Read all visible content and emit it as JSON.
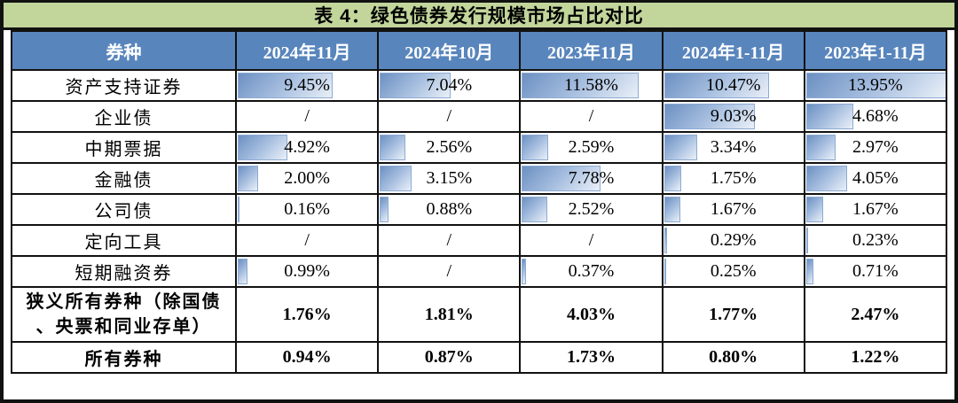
{
  "title": "表 4：绿色债券发行规模市场占比对比",
  "chart_data": {
    "type": "table",
    "title": "表 4：绿色债券发行规模市场占比对比",
    "columns": [
      "券种",
      "2024年11月",
      "2024年10月",
      "2023年11月",
      "2024年1-11月",
      "2023年1-11月"
    ],
    "rows": [
      {
        "label": "资产支持证券",
        "values": [
          "9.45%",
          "7.04%",
          "11.58%",
          "10.47%",
          "13.95%"
        ],
        "bar_values": [
          9.45,
          7.04,
          11.58,
          10.47,
          13.95
        ],
        "bold": false
      },
      {
        "label": "企业债",
        "values": [
          "/",
          "/",
          "/",
          "9.03%",
          "4.68%"
        ],
        "bar_values": [
          null,
          null,
          null,
          9.03,
          4.68
        ],
        "bold": false
      },
      {
        "label": "中期票据",
        "values": [
          "4.92%",
          "2.56%",
          "2.59%",
          "3.34%",
          "2.97%"
        ],
        "bar_values": [
          4.92,
          2.56,
          2.59,
          3.34,
          2.97
        ],
        "bold": false
      },
      {
        "label": "金融债",
        "values": [
          "2.00%",
          "3.15%",
          "7.78%",
          "1.75%",
          "4.05%"
        ],
        "bar_values": [
          2.0,
          3.15,
          7.78,
          1.75,
          4.05
        ],
        "bold": false
      },
      {
        "label": "公司债",
        "values": [
          "0.16%",
          "0.88%",
          "2.52%",
          "1.67%",
          "1.67%"
        ],
        "bar_values": [
          0.16,
          0.88,
          2.52,
          1.67,
          1.67
        ],
        "bold": false
      },
      {
        "label": "定向工具",
        "values": [
          "/",
          "/",
          "/",
          "0.29%",
          "0.23%"
        ],
        "bar_values": [
          null,
          null,
          null,
          0.29,
          0.23
        ],
        "bold": false
      },
      {
        "label": "短期融资券",
        "values": [
          "0.99%",
          "/",
          "0.37%",
          "0.25%",
          "0.71%"
        ],
        "bar_values": [
          0.99,
          null,
          0.37,
          0.25,
          0.71
        ],
        "bold": false
      },
      {
        "label": "狭义所有券种（除国债、央票和同业存单）",
        "values": [
          "1.76%",
          "1.81%",
          "4.03%",
          "1.77%",
          "2.47%"
        ],
        "bar_values": [
          null,
          null,
          null,
          null,
          null
        ],
        "bold": true
      },
      {
        "label": "所有券种",
        "values": [
          "0.94%",
          "0.87%",
          "1.73%",
          "0.80%",
          "1.22%"
        ],
        "bar_values": [
          null,
          null,
          null,
          null,
          null
        ],
        "bold": true
      }
    ],
    "bar_scale_max": 13.95,
    "layout": {
      "grid": true,
      "bar_style": "gradient-data-bar",
      "value_align": "center"
    }
  },
  "colors": {
    "title_bg": "#C2D59B",
    "header_bg": "#5885BC",
    "header_text": "#FFFFFF",
    "border_color": "#111111",
    "bar_border": "#8CABD3",
    "bar_dark": "#6C90C2",
    "bar_mid": "#A6BEDF",
    "bar_light": "#EAF0F8"
  }
}
